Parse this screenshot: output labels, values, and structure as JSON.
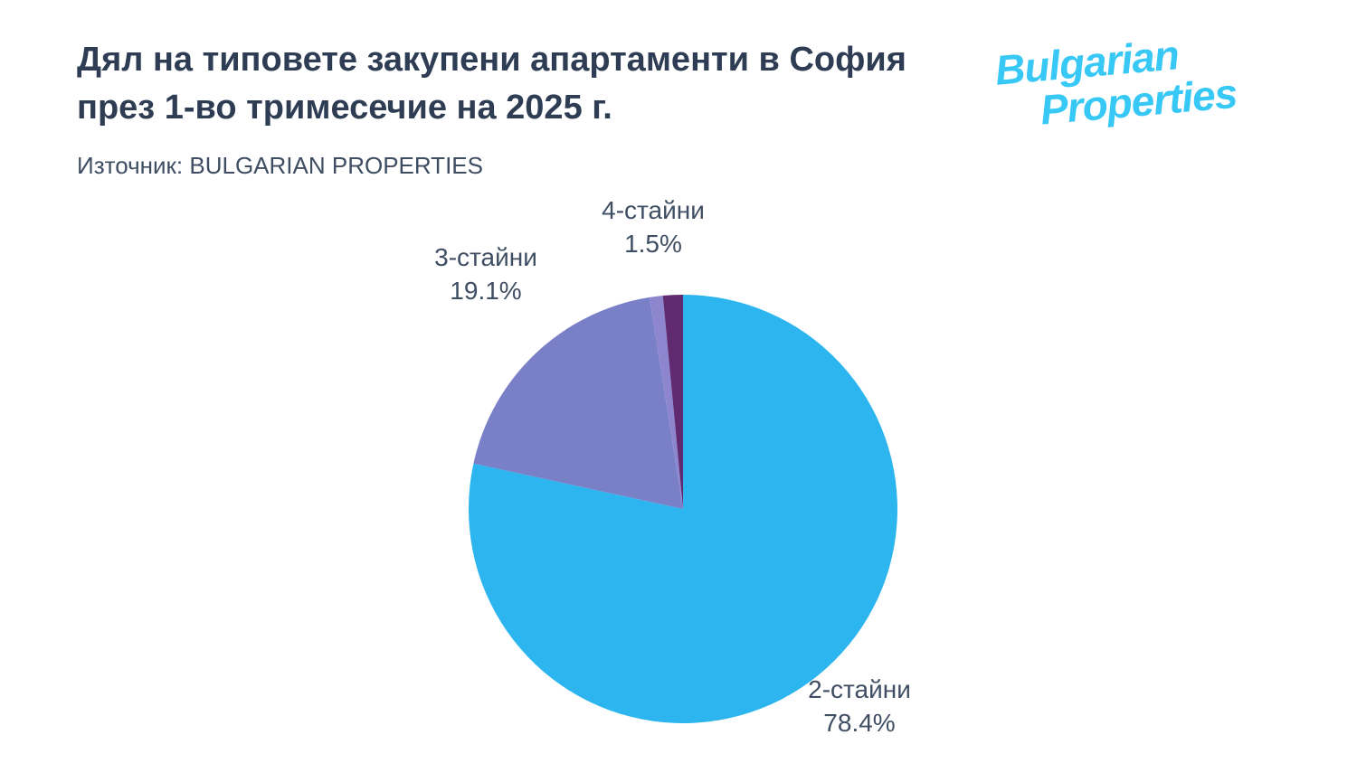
{
  "header": {
    "title_line1": "Дял на типовете закупени апартаменти в София",
    "title_line2": "през 1-во тримесечие на 2025 г.",
    "source": "Източник: BULGARIAN PROPERTIES"
  },
  "logo": {
    "line1": "Bulgarian",
    "line2": "Properties",
    "color": "#38c8f6"
  },
  "chart_data": {
    "type": "pie",
    "title": "Дял на типовете закупени апартаменти в София през 1-во тримесечие на 2025 г.",
    "source": "Източник: BULGARIAN PROPERTIES",
    "start_angle_deg": 0,
    "direction": "clockwise",
    "legend": "none",
    "slices": [
      {
        "label": "2-стайни",
        "value": 78.4,
        "pct_text": "78.4%",
        "color": "#2cb5ef"
      },
      {
        "label": "3-стайни",
        "value": 19.1,
        "pct_text": "19.1%",
        "color": "#7a80c8"
      },
      {
        "label": "",
        "value": 1.0,
        "color": "#8d86cf"
      },
      {
        "label": "4-стайни",
        "value": 1.5,
        "pct_text": "1.5%",
        "color": "#5f2a70"
      }
    ]
  }
}
